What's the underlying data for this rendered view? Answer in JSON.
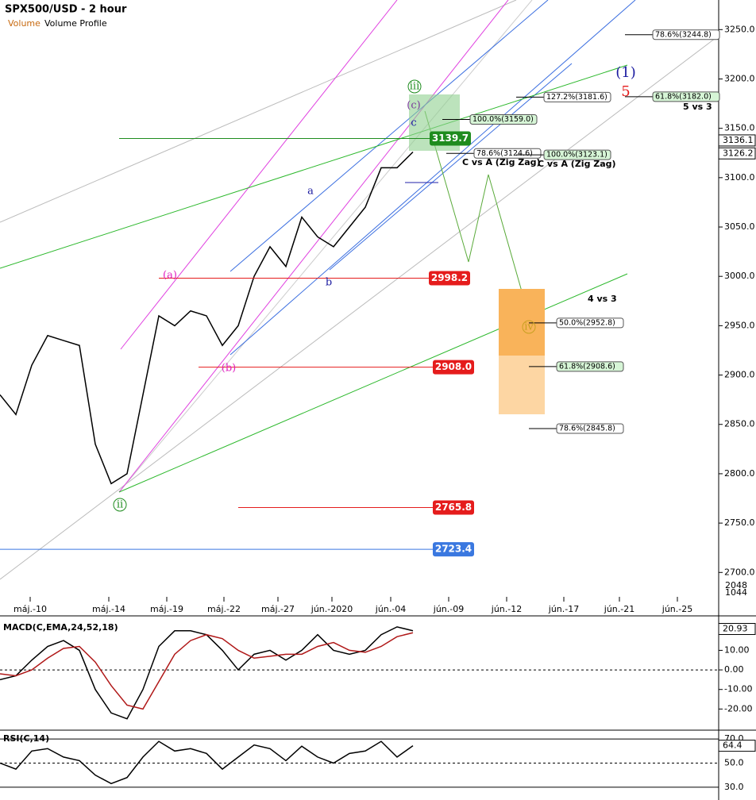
{
  "chart_data": {
    "type": "line",
    "title": "SPX500/USD - 2 hour",
    "legend_items": [
      "Volume",
      "Volume Profile"
    ],
    "x_labels": [
      "máj.-10",
      "máj.-14",
      "máj.-19",
      "máj.-22",
      "máj.-27",
      "jún.-2020",
      "jún.-04",
      "jún.-09",
      "jún.-12",
      "jún.-17",
      "jún.-21",
      "jún.-25"
    ],
    "series": [
      {
        "name": "SPX500/USD",
        "color": "#000000",
        "values": [
          2880,
          2860,
          2910,
          2940,
          2935,
          2930,
          2830,
          2790,
          2800,
          2880,
          2960,
          2950,
          2965,
          2960,
          2930,
          2950,
          3000,
          3030,
          3010,
          3060,
          3040,
          3030,
          3050,
          3070,
          3110,
          3110,
          3126
        ]
      }
    ],
    "ylim": [
      2656,
      3280
    ],
    "yticks": [
      {
        "value": 3250,
        "label": "3250.0"
      },
      {
        "value": 3200,
        "label": "3200.0"
      },
      {
        "value": 3150,
        "label": "3150.0"
      },
      {
        "value": 3100,
        "label": "3100.0"
      },
      {
        "value": 3050,
        "label": "3050.0"
      },
      {
        "value": 3000,
        "label": "3000.0"
      },
      {
        "value": 2950,
        "label": "2950.0"
      },
      {
        "value": 2900,
        "label": "2900.0"
      },
      {
        "value": 2850,
        "label": "2850.0"
      },
      {
        "value": 2800,
        "label": "2800.0"
      },
      {
        "value": 2750,
        "label": "2750.0"
      },
      {
        "value": 2700,
        "label": "2700.0"
      }
    ],
    "price_badges": [
      {
        "value": 3136.1,
        "label": "3136.1"
      },
      {
        "value": 3126.2,
        "label": "3126.2"
      }
    ],
    "volume_labels": [
      "2048",
      "1044"
    ],
    "levels": [
      {
        "value": 3139.7,
        "label": "3139.7",
        "color": "#1e8c1e"
      },
      {
        "value": 2998.2,
        "label": "2998.2",
        "color": "#e51c1c"
      },
      {
        "value": 2908,
        "label": "2908.0",
        "color": "#e51c1c"
      },
      {
        "value": 2765.8,
        "label": "2765.8",
        "color": "#e51c1c"
      },
      {
        "value": 2723.4,
        "label": "2723.4",
        "color": "#3a78e0"
      }
    ],
    "fib_labels": [
      {
        "value": 3244.8,
        "label": "78.6%(3244.8)"
      },
      {
        "value": 3181.6,
        "label": "127.2%(3181.6)"
      },
      {
        "value": 3182,
        "label": "61.8%(3182.0)"
      },
      {
        "value": 3159,
        "label": "100.0%(3159.0)"
      },
      {
        "value": 3124.6,
        "label": "78.6%(3124.6)"
      },
      {
        "value": 3123.1,
        "label": "100.0%(3123.1)"
      },
      {
        "value": 2952.8,
        "label": "50.0%(2952.8)"
      },
      {
        "value": 2908.6,
        "label": "61.8%(2908.6)"
      },
      {
        "value": 2845.8,
        "label": "78.6%(2845.8)"
      }
    ],
    "annotations": [
      "C vs A (Zig Zag)",
      "C vs A (Zig Zag)",
      "5 vs 3",
      "4 vs 3"
    ],
    "wave_labels": [
      "iii",
      "(c)",
      "c",
      "a",
      "b",
      "(a)",
      "(b)",
      "ii",
      "iv",
      "(1)",
      "5"
    ],
    "macd": {
      "title": "MACD(C,EMA,24,52,18)",
      "badge": 20.93,
      "ylim": [
        -30,
        26
      ],
      "yticks": [
        {
          "value": 10,
          "label": "10.00"
        },
        {
          "value": 0,
          "label": "0.00"
        },
        {
          "value": -10,
          "label": "-10.00"
        },
        {
          "value": -20,
          "label": "-20.00"
        }
      ],
      "series": [
        {
          "name": "MACD",
          "color": "#000000",
          "values": [
            -5,
            -3,
            5,
            12,
            15,
            10,
            -10,
            -22,
            -25,
            -10,
            12,
            20,
            20,
            18,
            10,
            0,
            8,
            10,
            5,
            10,
            18,
            10,
            8,
            10,
            18,
            22,
            20
          ]
        },
        {
          "name": "Signal",
          "color": "#b01818",
          "values": [
            -2,
            -3,
            0,
            6,
            11,
            12,
            4,
            -8,
            -18,
            -20,
            -6,
            8,
            15,
            18,
            16,
            10,
            6,
            7,
            8,
            8,
            12,
            14,
            10,
            9,
            12,
            17,
            19
          ]
        }
      ]
    },
    "rsi": {
      "title": "RSI(C,14)",
      "badge": 64.4,
      "ylim": [
        22,
        76
      ],
      "yticks": [
        {
          "value": 70,
          "label": "70.0"
        },
        {
          "value": 50,
          "label": "50.0"
        },
        {
          "value": 30,
          "label": "30.0"
        }
      ],
      "series": [
        {
          "name": "RSI",
          "color": "#000000",
          "values": [
            50,
            45,
            60,
            62,
            55,
            52,
            40,
            33,
            38,
            55,
            68,
            60,
            62,
            58,
            45,
            55,
            65,
            62,
            52,
            64,
            55,
            50,
            58,
            60,
            68,
            55,
            64.4
          ]
        }
      ]
    }
  }
}
